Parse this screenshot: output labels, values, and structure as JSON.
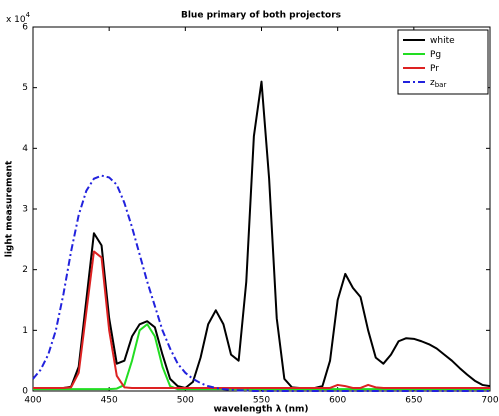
{
  "chart_data": {
    "type": "line",
    "title": "Blue primary of both projectors",
    "xlabel": "wavelength λ (nm)",
    "ylabel": "light measurement",
    "y_multiplier": "x 10",
    "y_multiplier_exponent": "4",
    "x": [
      400,
      405,
      410,
      415,
      420,
      425,
      430,
      435,
      440,
      445,
      450,
      455,
      460,
      465,
      470,
      475,
      480,
      485,
      490,
      495,
      500,
      505,
      510,
      515,
      520,
      525,
      530,
      535,
      540,
      545,
      550,
      555,
      560,
      565,
      570,
      575,
      580,
      585,
      590,
      595,
      600,
      605,
      610,
      615,
      620,
      625,
      630,
      635,
      640,
      645,
      650,
      655,
      660,
      665,
      670,
      675,
      680,
      685,
      690,
      695,
      700
    ],
    "series": [
      {
        "name": "white",
        "color": "#000000",
        "dash": "solid",
        "values": [
          0.05,
          0.05,
          0.05,
          0.05,
          0.05,
          0.07,
          0.4,
          1.5,
          2.6,
          2.4,
          1.2,
          0.45,
          0.5,
          0.9,
          1.1,
          1.15,
          1.05,
          0.6,
          0.2,
          0.08,
          0.05,
          0.15,
          0.55,
          1.1,
          1.33,
          1.1,
          0.6,
          0.5,
          1.8,
          4.2,
          5.1,
          3.5,
          1.2,
          0.2,
          0.06,
          0.05,
          0.05,
          0.05,
          0.08,
          0.5,
          1.5,
          1.93,
          1.7,
          1.55,
          1.0,
          0.55,
          0.45,
          0.6,
          0.82,
          0.87,
          0.86,
          0.82,
          0.77,
          0.7,
          0.6,
          0.5,
          0.38,
          0.27,
          0.17,
          0.1,
          0.08
        ]
      },
      {
        "name": "Pg",
        "color": "#22dd22",
        "dash": "solid",
        "values": [
          0.03,
          0.03,
          0.03,
          0.03,
          0.03,
          0.03,
          0.03,
          0.03,
          0.03,
          0.03,
          0.03,
          0.04,
          0.1,
          0.5,
          1.0,
          1.1,
          0.9,
          0.4,
          0.08,
          0.03,
          0.03,
          0.03,
          0.03,
          0.03,
          0.03,
          0.03,
          0.03,
          0.03,
          0.03,
          0.03,
          0.03,
          0.03,
          0.03,
          0.03,
          0.03,
          0.03,
          0.03,
          0.03,
          0.03,
          0.03,
          0.03,
          0.03,
          0.03,
          0.03,
          0.03,
          0.03,
          0.03,
          0.03,
          0.03,
          0.03,
          0.03,
          0.03,
          0.03,
          0.03,
          0.03,
          0.03,
          0.03,
          0.03,
          0.03,
          0.03,
          0.03
        ]
      },
      {
        "name": "Pr",
        "color": "#dd2222",
        "dash": "solid",
        "values": [
          0.05,
          0.05,
          0.05,
          0.05,
          0.05,
          0.06,
          0.3,
          1.3,
          2.3,
          2.2,
          1.0,
          0.25,
          0.06,
          0.05,
          0.05,
          0.05,
          0.05,
          0.05,
          0.05,
          0.05,
          0.05,
          0.05,
          0.05,
          0.05,
          0.05,
          0.05,
          0.05,
          0.05,
          0.05,
          0.05,
          0.05,
          0.05,
          0.05,
          0.05,
          0.05,
          0.05,
          0.05,
          0.05,
          0.05,
          0.05,
          0.1,
          0.08,
          0.05,
          0.05,
          0.1,
          0.06,
          0.05,
          0.05,
          0.05,
          0.05,
          0.05,
          0.05,
          0.05,
          0.05,
          0.05,
          0.05,
          0.05,
          0.05,
          0.05,
          0.05,
          0.05
        ]
      },
      {
        "name": "z",
        "name_subscript": "bar",
        "color": "#2222dd",
        "dash": "dashdot",
        "values": [
          0.2,
          0.35,
          0.6,
          1.0,
          1.6,
          2.3,
          2.9,
          3.3,
          3.5,
          3.55,
          3.52,
          3.4,
          3.1,
          2.7,
          2.25,
          1.8,
          1.4,
          1.0,
          0.7,
          0.45,
          0.3,
          0.2,
          0.13,
          0.08,
          0.05,
          0.03,
          0.02,
          0.01,
          0.01,
          0,
          0,
          0,
          0,
          0,
          0,
          0,
          0,
          0,
          0,
          0,
          0,
          0,
          0,
          0,
          0,
          0,
          0,
          0,
          0,
          0,
          0,
          0,
          0,
          0,
          0,
          0,
          0,
          0,
          0,
          0,
          0
        ]
      }
    ],
    "xlim": [
      400,
      700
    ],
    "xticks": [
      400,
      450,
      500,
      550,
      600,
      650,
      700
    ],
    "ylim": [
      0,
      6
    ],
    "yticks": [
      0,
      1,
      2,
      3,
      4,
      5,
      6
    ],
    "grid": false,
    "legend": "upper right"
  }
}
